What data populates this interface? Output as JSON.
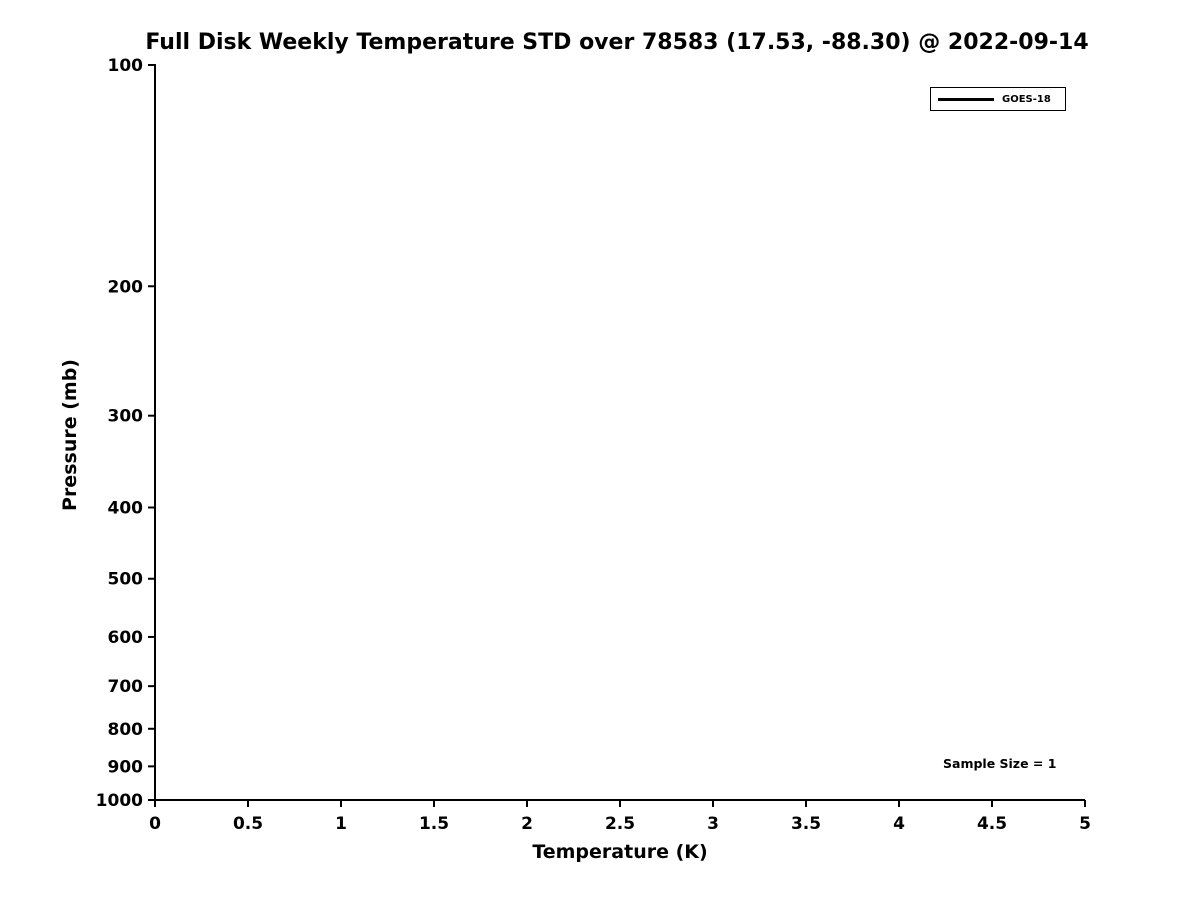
{
  "figure": {
    "background": "#ffffff",
    "axis_color": "#000000"
  },
  "chart_data": {
    "type": "line",
    "title": "Full Disk Weekly Temperature STD over 78583 (17.53, -88.30) @ 2022-09-14",
    "xlabel": "Temperature (K)",
    "ylabel": "Pressure (mb)",
    "xlim": [
      0,
      5
    ],
    "ylim": [
      100,
      1000
    ],
    "y_scale": "log",
    "y_axis_orientation": "inverted (100 mb at top, 1000 mb at bottom)",
    "grid": false,
    "x_ticks": [
      {
        "value": 0,
        "label": "0"
      },
      {
        "value": 0.5,
        "label": "0.5"
      },
      {
        "value": 1,
        "label": "1"
      },
      {
        "value": 1.5,
        "label": "1.5"
      },
      {
        "value": 2,
        "label": "2"
      },
      {
        "value": 2.5,
        "label": "2.5"
      },
      {
        "value": 3,
        "label": "3"
      },
      {
        "value": 3.5,
        "label": "3.5"
      },
      {
        "value": 4,
        "label": "4"
      },
      {
        "value": 4.5,
        "label": "4.5"
      },
      {
        "value": 5,
        "label": "5"
      }
    ],
    "y_ticks": [
      {
        "value": 100,
        "label": "100"
      },
      {
        "value": 200,
        "label": "200"
      },
      {
        "value": 300,
        "label": "300"
      },
      {
        "value": 400,
        "label": "400"
      },
      {
        "value": 500,
        "label": "500"
      },
      {
        "value": 600,
        "label": "600"
      },
      {
        "value": 700,
        "label": "700"
      },
      {
        "value": 800,
        "label": "800"
      },
      {
        "value": 900,
        "label": "900"
      },
      {
        "value": 1000,
        "label": "1000"
      }
    ],
    "legend": {
      "position": "top-right",
      "entries": [
        {
          "label": "GOES-18",
          "color": "#000000",
          "line_style": "solid"
        }
      ]
    },
    "annotation": {
      "text": "Sample Size = 1"
    },
    "series": [
      {
        "name": "GOES-18",
        "color": "#000000",
        "points": []
      }
    ]
  }
}
